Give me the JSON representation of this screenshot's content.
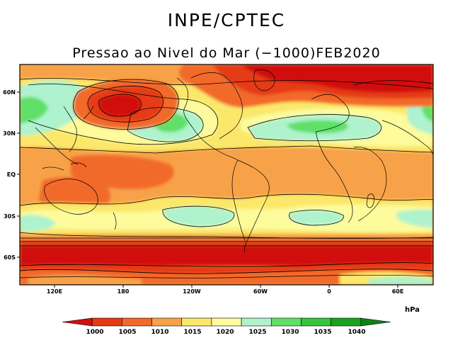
{
  "header": {
    "organization": "INPE/CPTEC",
    "title": "Pressao ao Nivel do Mar (−1000)FEB2020"
  },
  "map": {
    "lat_labels": [
      "60N",
      "30N",
      "EQ",
      "30S",
      "60S"
    ],
    "lon_labels": [
      "120E",
      "180",
      "120W",
      "60W",
      "0",
      "60E"
    ]
  },
  "colorbar": {
    "unit": "hPa",
    "levels": [
      "1000",
      "1005",
      "1010",
      "1015",
      "1020",
      "1025",
      "1030",
      "1035",
      "1040"
    ],
    "colors": [
      "#d10f0f",
      "#e53a12",
      "#f26a2c",
      "#f7a248",
      "#fbe86a",
      "#fdfb9c",
      "#aef3ce",
      "#60e068",
      "#35c43c",
      "#1aa21f",
      "#108015"
    ]
  }
}
